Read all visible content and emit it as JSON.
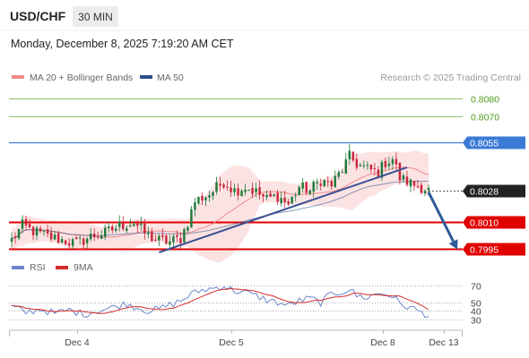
{
  "header": {
    "symbol": "USD/CHF",
    "timeframe": "30 MIN",
    "datetime": "Monday, December 8, 2025 7:19:20 AM CET"
  },
  "legend": {
    "ma20_bb": "MA 20 + Bollinger Bands",
    "ma50": "MA 50",
    "copyright": "Research © 2025 Trading Central",
    "rsi": "RSI",
    "ma9": "9MA"
  },
  "colors": {
    "up_candle": "#1f7a3a",
    "down_candle": "#c8263a",
    "ma20": "#f08a8a",
    "bollinger_fill": "#fbdada",
    "ma50": "#2d4f8a",
    "trendline": "#3a4f94",
    "arrow": "#2f5b9a",
    "resistance_green": "#8cc06a",
    "pivot_blue": "#3b7bd6",
    "support_red": "#e00000",
    "current_price": "#222222",
    "rsi": "#6b86c9",
    "rsi_ma9": "#d62a2a",
    "green_label_text": "#4b9b1a"
  },
  "chart_data": [
    {
      "type": "candlestick",
      "x_ticks": [
        "Dec 4",
        "Dec 5",
        "Dec 8",
        "Dec 13"
      ],
      "ylim": [
        0.799,
        0.8085
      ],
      "levels": [
        {
          "value": 0.808,
          "label": "0.8080",
          "kind": "resistance"
        },
        {
          "value": 0.807,
          "label": "0.8070",
          "kind": "resistance"
        },
        {
          "value": 0.8055,
          "label": "0.8055",
          "kind": "pivot"
        },
        {
          "value": 0.8028,
          "label": "0.8028",
          "kind": "current"
        },
        {
          "value": 0.801,
          "label": "0.8010",
          "kind": "support"
        },
        {
          "value": 0.7995,
          "label": "0.7995",
          "kind": "support"
        }
      ],
      "close_waypoints": [
        [
          0,
          0.8
        ],
        [
          3,
          0.8008
        ],
        [
          6,
          0.8005
        ],
        [
          10,
          0.8002
        ],
        [
          14,
          0.8
        ],
        [
          18,
          0.7998
        ],
        [
          22,
          0.8002
        ],
        [
          26,
          0.8004
        ],
        [
          30,
          0.8008
        ],
        [
          34,
          0.801
        ],
        [
          37,
          0.8004
        ],
        [
          40,
          0.8
        ],
        [
          44,
          0.7999
        ],
        [
          47,
          0.8001
        ],
        [
          49,
          0.801
        ],
        [
          51,
          0.8022
        ],
        [
          55,
          0.8026
        ],
        [
          59,
          0.8033
        ],
        [
          62,
          0.8028
        ],
        [
          65,
          0.803
        ],
        [
          68,
          0.8027
        ],
        [
          71,
          0.8023
        ],
        [
          74,
          0.8025
        ],
        [
          77,
          0.802
        ],
        [
          80,
          0.803
        ],
        [
          83,
          0.8028
        ],
        [
          86,
          0.8034
        ],
        [
          89,
          0.8031
        ],
        [
          92,
          0.804
        ],
        [
          94,
          0.8047
        ],
        [
          96,
          0.8043
        ],
        [
          99,
          0.804
        ],
        [
          102,
          0.8038
        ],
        [
          104,
          0.8044
        ],
        [
          106,
          0.8046
        ],
        [
          108,
          0.8035
        ],
        [
          111,
          0.8032
        ],
        [
          114,
          0.803
        ],
        [
          116,
          0.8028
        ]
      ],
      "trendline": [
        [
          41,
          0.7993
        ],
        [
          110,
          0.8041
        ]
      ],
      "projection_arrow": [
        [
          116,
          0.8027
        ],
        [
          124,
          0.7995
        ]
      ]
    },
    {
      "type": "line",
      "name": "RSI",
      "ylim": [
        20,
        80
      ],
      "y_ticks": [
        70,
        50,
        40,
        30
      ],
      "waypoints": [
        [
          0,
          45
        ],
        [
          4,
          38
        ],
        [
          8,
          42
        ],
        [
          12,
          37
        ],
        [
          16,
          41
        ],
        [
          20,
          36
        ],
        [
          24,
          40
        ],
        [
          28,
          44
        ],
        [
          32,
          49
        ],
        [
          35,
          44
        ],
        [
          38,
          40
        ],
        [
          41,
          42
        ],
        [
          44,
          47
        ],
        [
          47,
          52
        ],
        [
          50,
          60
        ],
        [
          53,
          65
        ],
        [
          56,
          67
        ],
        [
          59,
          70
        ],
        [
          62,
          64
        ],
        [
          65,
          62
        ],
        [
          68,
          58
        ],
        [
          71,
          53
        ],
        [
          74,
          50
        ],
        [
          77,
          46
        ],
        [
          80,
          52
        ],
        [
          83,
          55
        ],
        [
          86,
          50
        ],
        [
          89,
          60
        ],
        [
          92,
          63
        ],
        [
          94,
          66
        ],
        [
          96,
          58
        ],
        [
          99,
          56
        ],
        [
          102,
          61
        ],
        [
          104,
          60
        ],
        [
          106,
          58
        ],
        [
          108,
          48
        ],
        [
          111,
          44
        ],
        [
          114,
          38
        ],
        [
          116,
          35
        ]
      ]
    }
  ]
}
